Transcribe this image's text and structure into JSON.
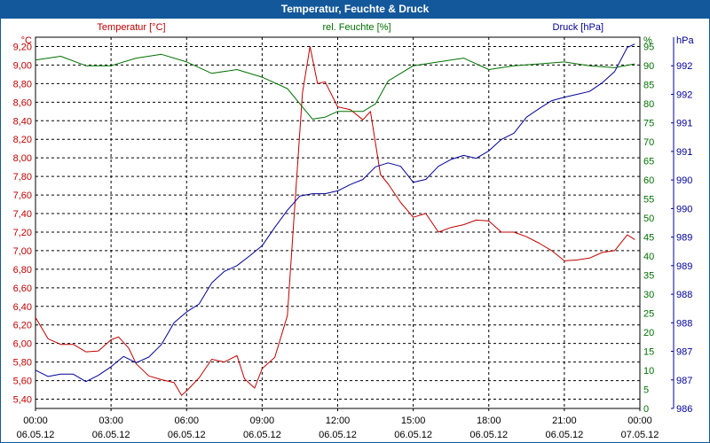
{
  "window": {
    "title": "Temperatur, Feuchte & Druck"
  },
  "chart_data": {
    "type": "line",
    "title": "Temperatur, Feuchte & Druck",
    "colors": {
      "temperature": "#c00000",
      "humidity": "#007000",
      "pressure": "#000099",
      "frame": "#13589a",
      "grid": "#000000"
    },
    "x_ticks": [
      {
        "time": "00:00",
        "date": "06.05.12"
      },
      {
        "time": "03:00",
        "date": "06.05.12"
      },
      {
        "time": "06:00",
        "date": "06.05.12"
      },
      {
        "time": "09:00",
        "date": "06.05.12"
      },
      {
        "time": "12:00",
        "date": "06.05.12"
      },
      {
        "time": "15:00",
        "date": "06.05.12"
      },
      {
        "time": "18:00",
        "date": "06.05.12"
      },
      {
        "time": "21:00",
        "date": "06.05.12"
      },
      {
        "time": "00:00",
        "date": "07.05.12"
      }
    ],
    "xlim": [
      0,
      24
    ],
    "axes": {
      "temperature": {
        "unit": "°C",
        "label": "Temperatur [°C]",
        "ticks": [
          "5,40",
          "5,60",
          "5,80",
          "6,00",
          "6,20",
          "6,40",
          "6,60",
          "6,80",
          "7,00",
          "7,20",
          "7,40",
          "7,60",
          "7,80",
          "8,00",
          "8,20",
          "8,40",
          "8,60",
          "8,80",
          "9,00",
          "9,20"
        ],
        "ylim": [
          5.3,
          9.3
        ]
      },
      "humidity": {
        "unit": "%",
        "label": "rel. Feuchte [%]",
        "ticks": [
          "0",
          "5",
          "10",
          "15",
          "20",
          "25",
          "30",
          "35",
          "40",
          "45",
          "50",
          "55",
          "60",
          "65",
          "70",
          "75",
          "80",
          "85",
          "90",
          "95"
        ],
        "ylim": [
          0,
          97.5
        ]
      },
      "pressure": {
        "unit": "hPa",
        "label": "Druck [hPa]",
        "ticks": [
          "986",
          "987",
          "987",
          "988",
          "988",
          "989",
          "989",
          "990",
          "990",
          "991",
          "991",
          "992",
          "992"
        ],
        "ylim": [
          986.0,
          992.5
        ]
      }
    },
    "series": [
      {
        "name": "Temperatur",
        "axis": "temperature",
        "points": [
          [
            0,
            6.28
          ],
          [
            0.5,
            6.05
          ],
          [
            1,
            5.99
          ],
          [
            1.5,
            5.99
          ],
          [
            2,
            5.91
          ],
          [
            2.5,
            5.92
          ],
          [
            3,
            6.04
          ],
          [
            3.3,
            6.07
          ],
          [
            3.7,
            5.95
          ],
          [
            4,
            5.78
          ],
          [
            4.5,
            5.65
          ],
          [
            5,
            5.61
          ],
          [
            5.5,
            5.58
          ],
          [
            5.8,
            5.44
          ],
          [
            6,
            5.49
          ],
          [
            6.5,
            5.63
          ],
          [
            7,
            5.83
          ],
          [
            7.5,
            5.8
          ],
          [
            8,
            5.87
          ],
          [
            8.3,
            5.62
          ],
          [
            8.7,
            5.52
          ],
          [
            9,
            5.73
          ],
          [
            9.5,
            5.85
          ],
          [
            10,
            6.3
          ],
          [
            10.3,
            7.5
          ],
          [
            10.6,
            8.7
          ],
          [
            10.9,
            9.2
          ],
          [
            11.2,
            8.8
          ],
          [
            11.5,
            8.82
          ],
          [
            12,
            8.55
          ],
          [
            12.5,
            8.52
          ],
          [
            13,
            8.41
          ],
          [
            13.3,
            8.5
          ],
          [
            13.7,
            7.82
          ],
          [
            14,
            7.72
          ],
          [
            14.5,
            7.52
          ],
          [
            15,
            7.36
          ],
          [
            15.5,
            7.4
          ],
          [
            16,
            7.2
          ],
          [
            16.5,
            7.25
          ],
          [
            17,
            7.28
          ],
          [
            17.5,
            7.33
          ],
          [
            18,
            7.32
          ],
          [
            18.5,
            7.2
          ],
          [
            19,
            7.2
          ],
          [
            19.5,
            7.15
          ],
          [
            20,
            7.08
          ],
          [
            20.5,
            7.0
          ],
          [
            21,
            6.89
          ],
          [
            21.5,
            6.9
          ],
          [
            22,
            6.92
          ],
          [
            22.5,
            6.98
          ],
          [
            23,
            7.0
          ],
          [
            23.5,
            7.17
          ],
          [
            23.8,
            7.12
          ]
        ]
      },
      {
        "name": "rel. Feuchte",
        "axis": "humidity",
        "points": [
          [
            0,
            91.5
          ],
          [
            1,
            92.5
          ],
          [
            2,
            90
          ],
          [
            3,
            90
          ],
          [
            4,
            92
          ],
          [
            5,
            93
          ],
          [
            6,
            91
          ],
          [
            7,
            88
          ],
          [
            8,
            89
          ],
          [
            9,
            87
          ],
          [
            10,
            84
          ],
          [
            10.5,
            80
          ],
          [
            11,
            76
          ],
          [
            11.5,
            76.5
          ],
          [
            12,
            78
          ],
          [
            13,
            78
          ],
          [
            13.5,
            80
          ],
          [
            14,
            86
          ],
          [
            15,
            90
          ],
          [
            16,
            91
          ],
          [
            17,
            92
          ],
          [
            18,
            89
          ],
          [
            19,
            90
          ],
          [
            20,
            90.5
          ],
          [
            21,
            91
          ],
          [
            22,
            90
          ],
          [
            23,
            89.5
          ],
          [
            23.8,
            90.5
          ]
        ]
      },
      {
        "name": "Druck",
        "axis": "pressure",
        "points": [
          [
            0,
            986.67
          ],
          [
            0.5,
            986.56
          ],
          [
            1,
            986.6
          ],
          [
            1.5,
            986.6
          ],
          [
            2,
            986.47
          ],
          [
            2.5,
            986.58
          ],
          [
            3,
            986.73
          ],
          [
            3.5,
            986.91
          ],
          [
            4,
            986.8
          ],
          [
            4.5,
            986.9
          ],
          [
            5,
            987.12
          ],
          [
            5.5,
            987.5
          ],
          [
            6,
            987.69
          ],
          [
            6.5,
            987.83
          ],
          [
            7,
            988.2
          ],
          [
            7.5,
            988.4
          ],
          [
            8,
            988.5
          ],
          [
            8.5,
            988.67
          ],
          [
            9,
            988.85
          ],
          [
            9.5,
            989.17
          ],
          [
            10,
            989.47
          ],
          [
            10.5,
            989.72
          ],
          [
            11,
            989.76
          ],
          [
            11.5,
            989.76
          ],
          [
            12,
            989.81
          ],
          [
            12.5,
            989.92
          ],
          [
            13,
            990.01
          ],
          [
            13.5,
            990.23
          ],
          [
            14,
            990.3
          ],
          [
            14.5,
            990.24
          ],
          [
            15,
            989.96
          ],
          [
            15.5,
            990.01
          ],
          [
            16,
            990.24
          ],
          [
            16.5,
            990.36
          ],
          [
            17,
            990.43
          ],
          [
            17.5,
            990.38
          ],
          [
            18,
            990.51
          ],
          [
            18.5,
            990.71
          ],
          [
            19,
            990.82
          ],
          [
            19.5,
            991.1
          ],
          [
            20,
            991.25
          ],
          [
            20.5,
            991.39
          ],
          [
            21,
            991.45
          ],
          [
            21.5,
            991.5
          ],
          [
            22,
            991.55
          ],
          [
            22.5,
            991.7
          ],
          [
            23,
            991.9
          ],
          [
            23.5,
            992.32
          ],
          [
            23.8,
            992.38
          ]
        ]
      }
    ]
  }
}
